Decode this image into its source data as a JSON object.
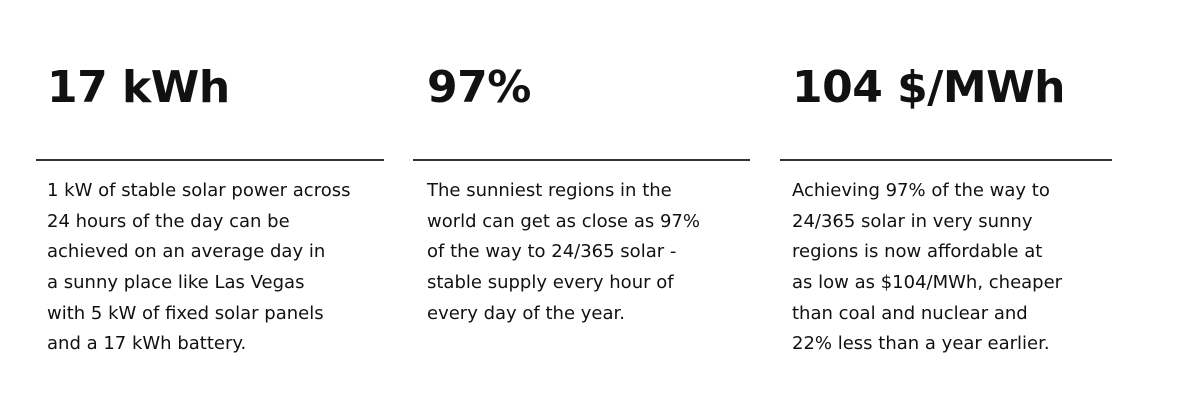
{
  "stats": [
    {
      "value": "17 kWh",
      "description": [
        "1 kW of stable solar power across",
        "24 hours of the day can be",
        "achieved on an average day in",
        "a sunny place like Las Vegas",
        "with 5 kW of fixed solar panels",
        "and a 17 kWh battery."
      ]
    },
    {
      "value": "97%",
      "description": [
        "The sunniest regions in the",
        "world can get as close as 97%",
        "of the way to 24/365 solar -",
        "stable supply every hour of",
        "every day of the year."
      ]
    },
    {
      "value": "104 $/MWh",
      "description": [
        "Achieving 97% of the way to",
        "24/365 solar in very sunny",
        "regions is now affordable at",
        "as low as $104/MWh, cheaper",
        "than coal and nuclear and",
        "22% less than a year earlier."
      ]
    }
  ]
}
